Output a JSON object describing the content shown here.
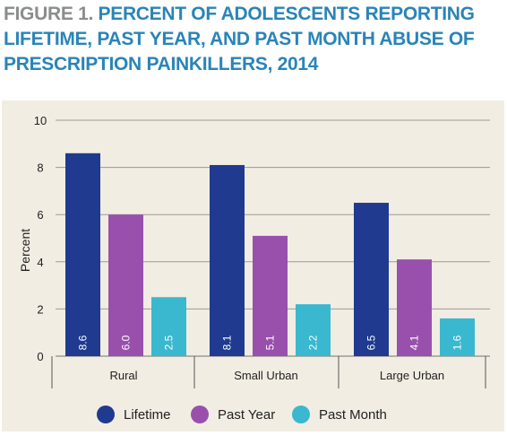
{
  "figure": {
    "label": "FIGURE 1.",
    "title": "PERCENT OF ADOLESCENTS REPORTING LIFETIME, PAST YEAR, AND PAST MONTH ABUSE OF PRESCRIPTION PAINKILLERS, 2014"
  },
  "colors": {
    "title_prefix": "#8a8c8e",
    "title_text": "#2a84b8",
    "panel_bg": "#f2ede3",
    "grid": "#9c9a96"
  },
  "chart_data": {
    "type": "bar",
    "title": "PERCENT OF ADOLESCENTS REPORTING LIFETIME, PAST YEAR, AND PAST MONTH ABUSE OF PRESCRIPTION PAINKILLERS, 2014",
    "xlabel": "",
    "ylabel": "Percent",
    "ylim": [
      0,
      10
    ],
    "yticks": [
      0,
      2,
      4,
      6,
      8,
      10
    ],
    "grid": true,
    "legend_position": "bottom",
    "categories": [
      "Rural",
      "Small Urban",
      "Large Urban"
    ],
    "series": [
      {
        "name": "Lifetime",
        "color": "#1f3a8f",
        "values": [
          8.6,
          8.1,
          6.5
        ],
        "labels": [
          "8.6",
          "8.1",
          "6.5"
        ]
      },
      {
        "name": "Past Year",
        "color": "#9950ad",
        "values": [
          6.0,
          5.1,
          4.1
        ],
        "labels": [
          "6.0",
          "5.1",
          "4.1"
        ]
      },
      {
        "name": "Past Month",
        "color": "#39b8cf",
        "values": [
          2.5,
          2.2,
          1.6
        ],
        "labels": [
          "2.5",
          "2.2",
          "1.6"
        ]
      }
    ]
  }
}
